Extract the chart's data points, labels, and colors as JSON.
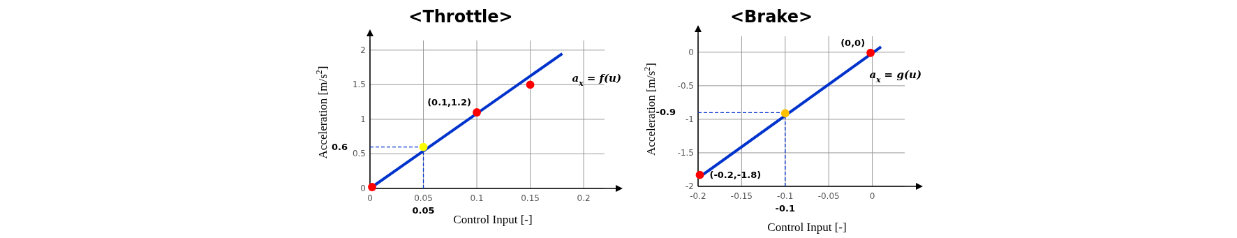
{
  "chart_data": [
    {
      "type": "line",
      "title": "<Throttle>",
      "xlabel": "Control Input [-]",
      "ylabel": "Acceleration [m/s$^{2}$]",
      "xlim": [
        0,
        0.23
      ],
      "ylim": [
        0,
        2.2
      ],
      "xticks": [
        0,
        0.05,
        0.1,
        0.15,
        0.2
      ],
      "yticks": [
        0,
        0.5,
        1,
        1.5,
        2
      ],
      "grid": true,
      "marker": "circle",
      "series": [
        {
          "type": "line",
          "color": "#0033cc",
          "marker": "none",
          "x": [
            0,
            0.18
          ],
          "values": [
            0,
            1.95
          ]
        },
        {
          "type": "scatter",
          "color": "#ff0000",
          "x": [
            0.002,
            0.1,
            0.15
          ],
          "values": [
            0.02,
            1.1,
            1.5
          ]
        },
        {
          "type": "scatter",
          "color": "#ffff00",
          "x": [
            0.05
          ],
          "values": [
            0.6
          ]
        }
      ],
      "ref_lines": [
        {
          "axis": "x",
          "value": 0.05,
          "label": "0.05",
          "color": "#0033cc",
          "line_style": "dashed"
        },
        {
          "axis": "y",
          "value": 0.6,
          "label": "0.6",
          "color": "#0033cc",
          "line_style": "dashed"
        }
      ],
      "annotations": [
        {
          "text": "(0.1,1.2)",
          "x": 0.1,
          "y": 1.1
        },
        "a$_{x}$ = f(u)"
      ]
    },
    {
      "type": "line",
      "title": "<Brake>",
      "xlabel": "Control Input [-]",
      "ylabel": "Acceleration [m/s$^{2}$]",
      "xlim": [
        -0.2,
        0.05
      ],
      "ylim": [
        -2,
        0.3
      ],
      "xticks": [
        -0.2,
        -0.15,
        -0.1,
        -0.05,
        0
      ],
      "yticks": [
        -2,
        -1.5,
        -1,
        -0.5,
        0
      ],
      "grid": true,
      "marker": "circle",
      "series": [
        {
          "type": "line",
          "color": "#0033cc",
          "marker": "none",
          "x": [
            -0.195,
            0.01
          ],
          "values": [
            -1.83,
            0.08
          ]
        },
        {
          "type": "scatter",
          "color": "#ff0000",
          "x": [
            -0.198,
            -0.002
          ],
          "values": [
            -1.83,
            -0.01
          ]
        },
        {
          "type": "scatter",
          "color": "#ffc000",
          "x": [
            -0.1
          ],
          "values": [
            -0.91
          ]
        }
      ],
      "ref_lines": [
        {
          "axis": "x",
          "value": -0.1,
          "label": "-0.1",
          "color": "#0033cc",
          "line_style": "dashed"
        },
        {
          "axis": "y",
          "value": -0.9,
          "label": "-0.9",
          "color": "#0033cc",
          "line_style": "dashed"
        }
      ],
      "annotations": [
        {
          "text": "(0,0)",
          "x": -0.002,
          "y": -0.01
        },
        {
          "text": "(-0.2,-1.8)",
          "x": -0.198,
          "y": -1.83
        },
        "a$_{x}$ = g(u)"
      ]
    }
  ]
}
